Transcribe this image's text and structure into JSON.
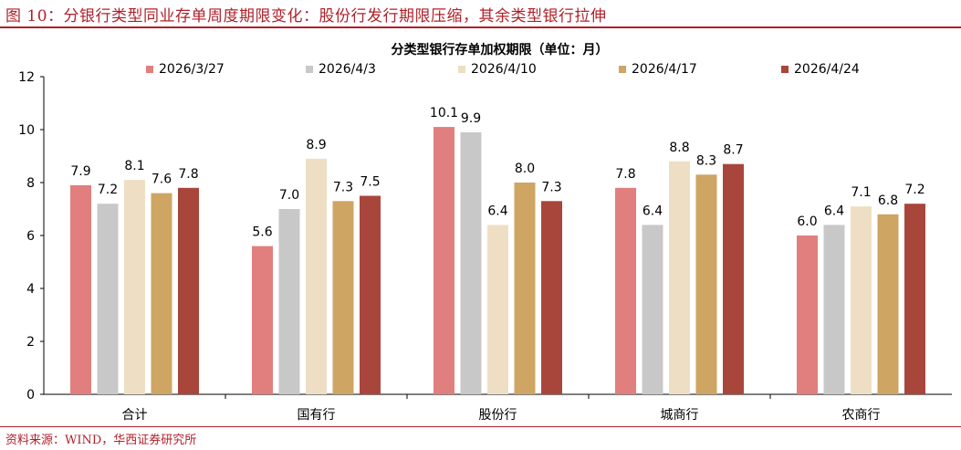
{
  "figure": {
    "title": "图 10：分银行类型同业存单周度期限变化：股份行发行期限压缩，其余类型银行拉伸",
    "source": "资料来源：WIND，华西证券研究所"
  },
  "chart_data": {
    "type": "bar",
    "title": "分类型银行存单加权期限（单位：月）",
    "xlabel": "",
    "ylabel": "",
    "categories": [
      "合计",
      "国有行",
      "股份行",
      "城商行",
      "农商行"
    ],
    "ylim": [
      0,
      12
    ],
    "yticks": [
      0,
      2,
      4,
      6,
      8,
      10,
      12
    ],
    "legend_position": "top",
    "grid": false,
    "series": [
      {
        "name": "2026/3/27",
        "color": "#e07f7d",
        "values": [
          7.9,
          5.6,
          10.1,
          7.8,
          6.0
        ]
      },
      {
        "name": "2026/4/3",
        "color": "#c8c8c8",
        "values": [
          7.2,
          7.0,
          9.9,
          6.4,
          6.4
        ]
      },
      {
        "name": "2026/4/10",
        "color": "#eedfc4",
        "values": [
          8.1,
          8.9,
          6.4,
          8.8,
          7.1
        ]
      },
      {
        "name": "2026/4/17",
        "color": "#cfa564",
        "values": [
          7.6,
          7.3,
          8.0,
          8.3,
          6.8
        ]
      },
      {
        "name": "2026/4/24",
        "color": "#a8463c",
        "values": [
          7.8,
          7.5,
          7.3,
          8.7,
          7.2
        ]
      }
    ]
  }
}
